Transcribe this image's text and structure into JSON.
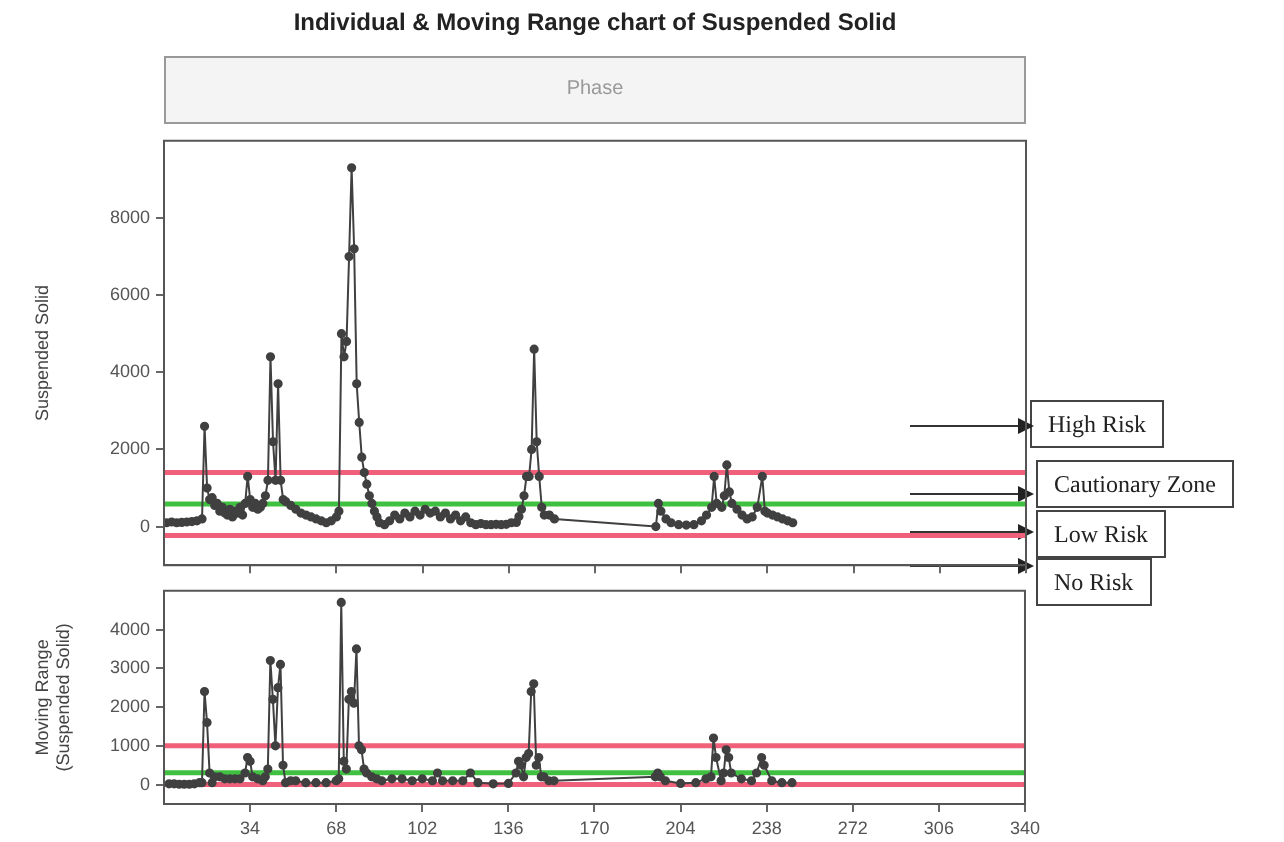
{
  "chart_data": [
    {
      "type": "line",
      "title": "Individual & Moving Range chart of Suspended Solid",
      "ylabel": "Suspended Solid",
      "annotations": [
        "Phase",
        "High Risk",
        "Cautionary Zone",
        "Low Risk",
        "No Risk"
      ],
      "series": [
        {
          "color": "#404040",
          "x": [
            1,
            3,
            5,
            7,
            9,
            11,
            13,
            15,
            16,
            17,
            18,
            19,
            20,
            21,
            22,
            23,
            24,
            25,
            26,
            27,
            28,
            29,
            30,
            31,
            32,
            33,
            34,
            35,
            36,
            37,
            38,
            39,
            40,
            41,
            42,
            43,
            44,
            45,
            46,
            47,
            48,
            50,
            52,
            54,
            56,
            58,
            60,
            62,
            64,
            66,
            68,
            69,
            70,
            71,
            72,
            73,
            74,
            75,
            76,
            77,
            78,
            79,
            80,
            81,
            82,
            83,
            84,
            85,
            87,
            89,
            91,
            93,
            95,
            97,
            99,
            101,
            103,
            105,
            107,
            109,
            111,
            113,
            115,
            117,
            119,
            121,
            123,
            125,
            127,
            129,
            131,
            133,
            135,
            137,
            139,
            140,
            141,
            142,
            143,
            144,
            145,
            146,
            147,
            148,
            149,
            150,
            152,
            154,
            194,
            195,
            196,
            198,
            200,
            203,
            206,
            209,
            212,
            214,
            216,
            217,
            218,
            220,
            221,
            222,
            223,
            224,
            226,
            228,
            230,
            232,
            234,
            236,
            237,
            238,
            240,
            242,
            244,
            246,
            248
          ],
          "values": [
            100,
            120,
            100,
            110,
            120,
            130,
            150,
            200,
            2600,
            1000,
            700,
            750,
            550,
            600,
            400,
            500,
            350,
            300,
            450,
            250,
            400,
            350,
            500,
            300,
            600,
            1300,
            700,
            500,
            600,
            450,
            500,
            600,
            800,
            1200,
            4400,
            2200,
            1200,
            3700,
            1200,
            700,
            650,
            550,
            450,
            350,
            300,
            250,
            200,
            150,
            100,
            150,
            250,
            400,
            5000,
            4400,
            4800,
            7000,
            9300,
            7200,
            3700,
            2700,
            1800,
            1400,
            1100,
            800,
            600,
            400,
            250,
            100,
            50,
            150,
            300,
            200,
            350,
            250,
            400,
            300,
            450,
            350,
            400,
            250,
            350,
            200,
            300,
            150,
            250,
            100,
            50,
            80,
            50,
            50,
            60,
            50,
            60,
            100,
            110,
            260,
            450,
            800,
            1300,
            1300,
            2000,
            4600,
            2200,
            1300,
            500,
            300,
            300,
            200,
            0,
            600,
            400,
            200,
            100,
            50,
            40,
            50,
            150,
            300,
            500,
            1300,
            600,
            500,
            800,
            1600,
            900,
            600,
            450,
            300,
            200,
            250,
            500,
            1300,
            400,
            350,
            300,
            250,
            200,
            150,
            100
          ]
        }
      ],
      "xlim": [
        0,
        340
      ],
      "xticks": [
        34,
        68,
        102,
        136,
        170,
        204,
        238,
        272,
        306,
        340
      ],
      "ylim": [
        -1000,
        10000
      ],
      "yticks": [
        0,
        2000,
        4000,
        6000,
        8000
      ],
      "tick_labels": "y",
      "grid": false,
      "marker": "circle",
      "ref_lines": [
        {
          "axis": "y",
          "value": 1400,
          "color": "#f0607a"
        },
        {
          "axis": "y",
          "value": 585,
          "color": "#40c040"
        },
        {
          "axis": "y",
          "value": -230,
          "color": "#f0607a"
        }
      ]
    },
    {
      "type": "line",
      "ylabel": "Moving Range (Suspended Solid)",
      "series": [
        {
          "color": "#404040",
          "x": [
            2,
            4,
            6,
            8,
            10,
            12,
            14,
            15,
            16,
            17,
            18,
            19,
            20,
            22,
            24,
            26,
            28,
            30,
            32,
            33,
            34,
            35,
            37,
            39,
            40,
            41,
            42,
            43,
            44,
            45,
            46,
            47,
            48,
            50,
            52,
            56,
            60,
            64,
            68,
            69,
            70,
            71,
            72,
            73,
            74,
            75,
            76,
            77,
            78,
            79,
            80,
            82,
            84,
            86,
            90,
            94,
            98,
            102,
            106,
            108,
            110,
            114,
            118,
            121,
            124,
            130,
            136,
            139,
            140,
            141,
            142,
            143,
            144,
            145,
            146,
            147,
            148,
            149,
            150,
            152,
            154,
            194,
            195,
            196,
            198,
            204,
            210,
            214,
            216,
            217,
            218,
            220,
            221,
            222,
            223,
            224,
            228,
            232,
            234,
            236,
            237,
            240,
            244,
            248
          ],
          "values": [
            20,
            20,
            10,
            10,
            10,
            20,
            50,
            50,
            2400,
            1600,
            300,
            50,
            200,
            200,
            150,
            150,
            150,
            150,
            300,
            700,
            600,
            200,
            150,
            100,
            200,
            400,
            3200,
            2200,
            1000,
            2500,
            3100,
            500,
            50,
            100,
            100,
            50,
            50,
            50,
            100,
            150,
            4700,
            600,
            400,
            2200,
            2400,
            2100,
            3500,
            1000,
            900,
            400,
            300,
            200,
            150,
            100,
            150,
            150,
            100,
            150,
            100,
            300,
            100,
            100,
            100,
            300,
            50,
            20,
            30,
            300,
            600,
            500,
            200,
            700,
            800,
            2400,
            2600,
            500,
            700,
            200,
            200,
            100,
            100,
            200,
            300,
            200,
            100,
            30,
            50,
            150,
            200,
            1200,
            700,
            100,
            300,
            900,
            700,
            300,
            150,
            100,
            300,
            700,
            500,
            100,
            50,
            50
          ]
        }
      ],
      "xlim": [
        0,
        340
      ],
      "xticks": [
        34,
        68,
        102,
        136,
        170,
        204,
        238,
        272,
        306,
        340
      ],
      "ylim": [
        -500,
        5000
      ],
      "yticks": [
        0,
        1000,
        2000,
        3000,
        4000
      ],
      "grid": false,
      "marker": "circle",
      "ref_lines": [
        {
          "axis": "y",
          "value": 1000,
          "color": "#f0607a"
        },
        {
          "axis": "y",
          "value": 306,
          "color": "#40c040"
        },
        {
          "axis": "y",
          "value": 0,
          "color": "#f0607a"
        }
      ]
    }
  ]
}
